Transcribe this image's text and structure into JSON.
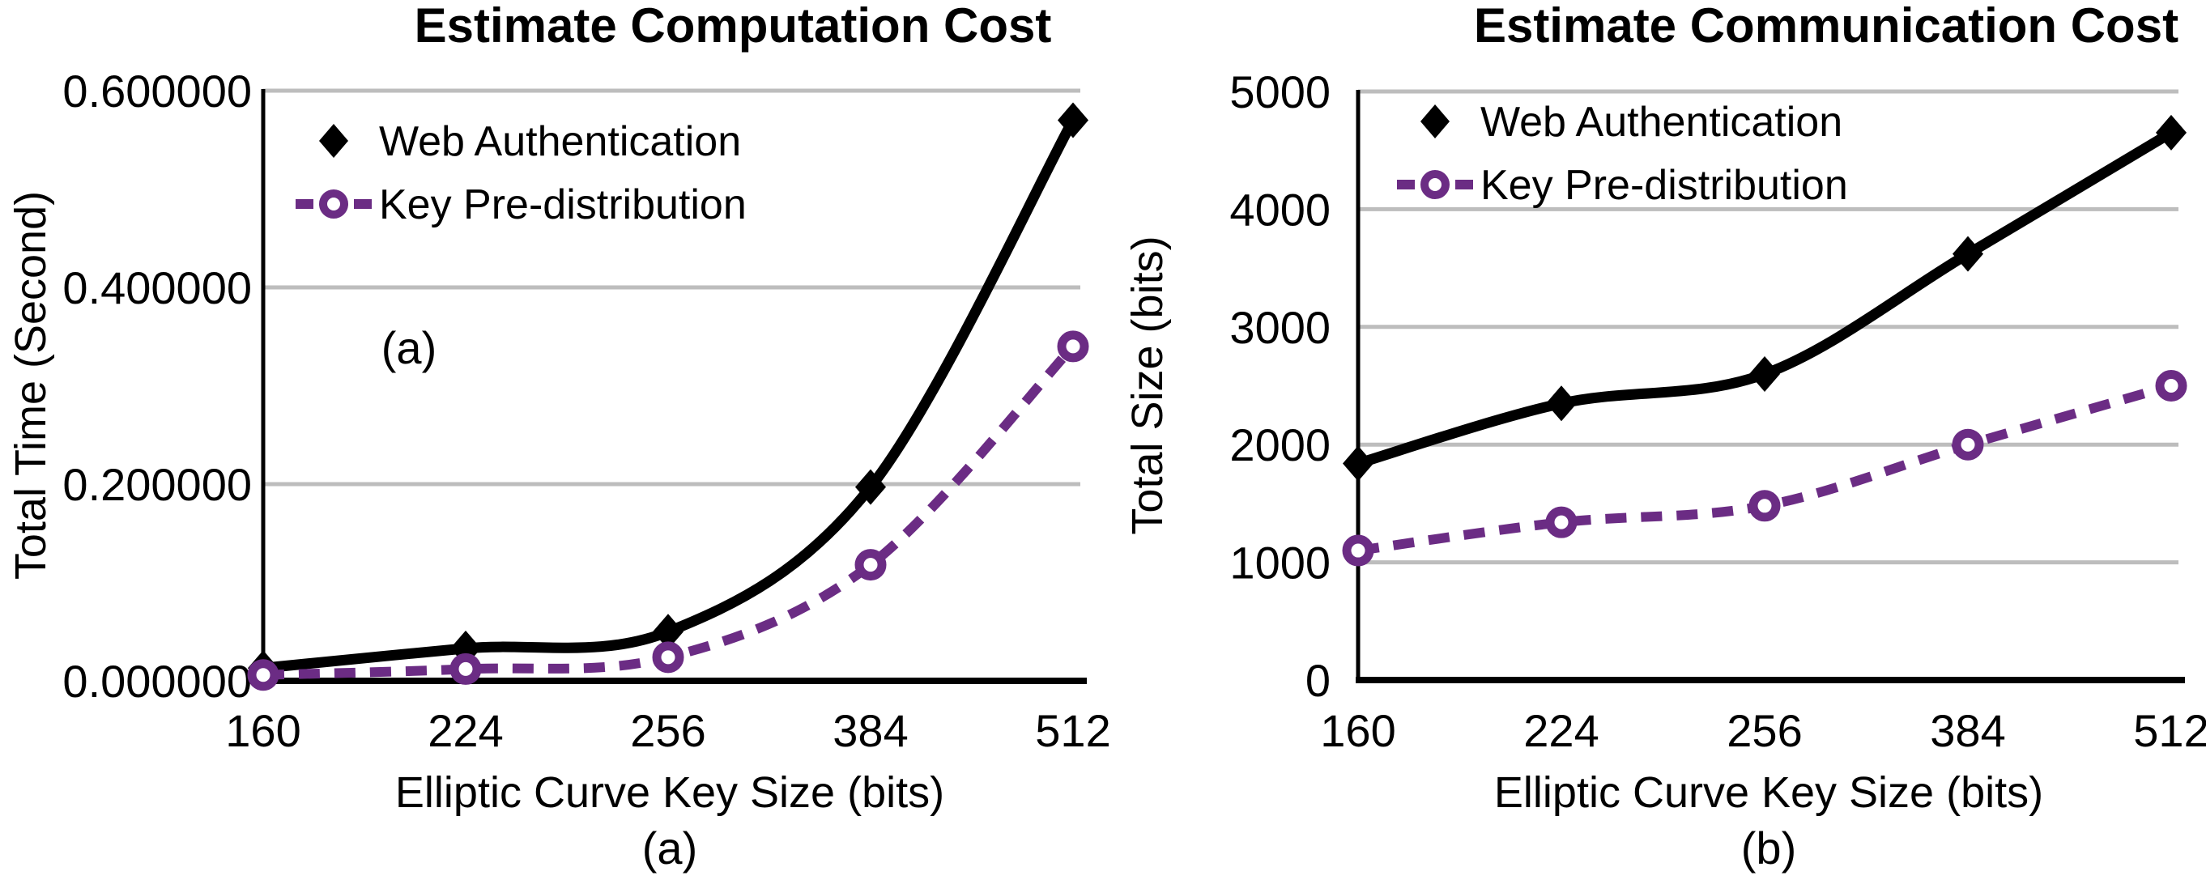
{
  "figure": {
    "background": "#FFFFFF"
  },
  "colors": {
    "web_authentication": "#000000",
    "key_predistribution": "#6B2C84",
    "gridline": "#BDBDBD",
    "text": "#000000"
  },
  "chart_data": [
    {
      "type": "line",
      "title": "Estimate Computation Cost",
      "xlabel": "Elliptic Curve Key Size (bits)",
      "ylabel": "Total Time (Second)",
      "caption": "(a)",
      "inner_label": "(a)",
      "grid": true,
      "legend_position": "upper left inside",
      "categories": [
        "160",
        "224",
        "256",
        "384",
        "512"
      ],
      "yticks": [
        "0.000000",
        "0.200000",
        "0.400000",
        "0.600000"
      ],
      "ylim": [
        0,
        0.6
      ],
      "series": [
        {
          "name": "Web Authentication",
          "color": "#000000",
          "marker": "diamond",
          "line_style": "solid",
          "values": [
            0.013,
            0.033,
            0.05,
            0.197,
            0.57
          ]
        },
        {
          "name": "Key Pre-distribution",
          "color": "#6B2C84",
          "marker": "open-circle",
          "line_style": "dashed",
          "values": [
            0.006,
            0.012,
            0.024,
            0.118,
            0.34
          ]
        }
      ]
    },
    {
      "type": "line",
      "title": "Estimate Communication Cost",
      "xlabel": "Elliptic Curve Key Size (bits)",
      "ylabel": "Total Size (bits)",
      "caption": "(b)",
      "grid": true,
      "legend_position": "upper left inside",
      "categories": [
        "160",
        "224",
        "256",
        "384",
        "512"
      ],
      "yticks": [
        "0",
        "1000",
        "2000",
        "3000",
        "4000",
        "5000"
      ],
      "ylim": [
        0,
        5000
      ],
      "series": [
        {
          "name": "Web Authentication",
          "color": "#000000",
          "marker": "diamond",
          "line_style": "solid",
          "values": [
            1840,
            2350,
            2600,
            3620,
            4650
          ]
        },
        {
          "name": "Key Pre-distribution",
          "color": "#6B2C84",
          "marker": "open-circle",
          "line_style": "dashed",
          "values": [
            1100,
            1340,
            1480,
            2000,
            2500
          ]
        }
      ]
    }
  ]
}
